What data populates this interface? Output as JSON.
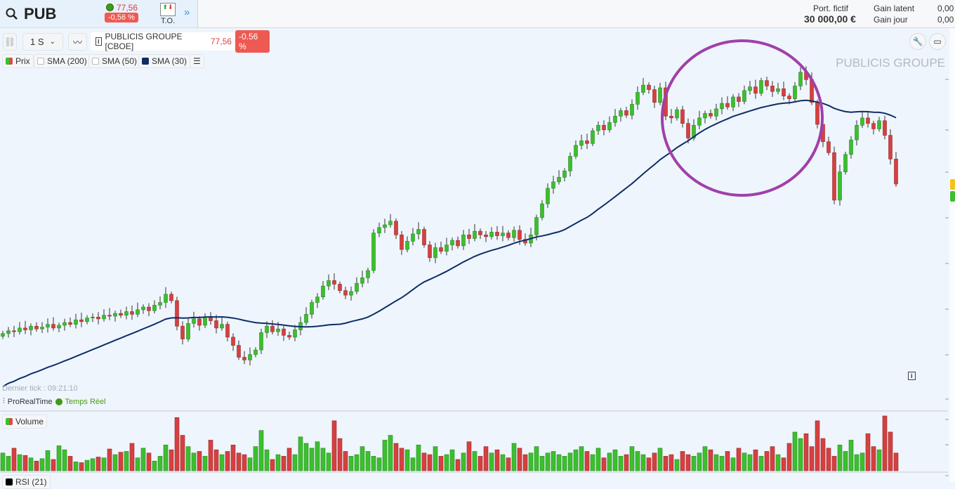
{
  "header": {
    "symbol": "PUB",
    "last_price": "77,56",
    "change": "-0,56 %",
    "to_label": "T.O.",
    "more_icon": "double-chevron-right-icon",
    "portfolio_label": "Port. fictif",
    "portfolio_value": "30 000,00 €",
    "gain_latent_label": "Gain latent",
    "gain_latent_value": "0,00",
    "gain_jour_label": "Gain jour",
    "gain_jour_value": "0,00"
  },
  "toolbar": {
    "period": "1 S",
    "instrument": "PUBLICIS GROUPE [CBOE]",
    "price": "77,56",
    "change": "-0.56 %"
  },
  "legend": [
    {
      "label": "Prix",
      "color": "#e04848"
    },
    {
      "label": "SMA (200)",
      "checked": false
    },
    {
      "label": "SMA (50)",
      "checked": false
    },
    {
      "label": "SMA (30)",
      "color": "#0f2d66"
    }
  ],
  "watermark": "PUBLICIS GROUPE",
  "last_tick": "Dernier tick : 09:21:10",
  "source": "ProRealTime",
  "realtime": "Temps Réel",
  "volume_label": "Volume",
  "rsi_label": "RSI (21)",
  "colors": {
    "up": "#3cbf2e",
    "down": "#d64040",
    "sma": "#0f2d66",
    "annotation": "#a040a8",
    "badge_last": "#f0c419",
    "badge_green": "#3cbf2e"
  },
  "chart_data": {
    "type": "candlestick",
    "last_close": 77.56,
    "closes": [
      61.2,
      61.5,
      61.4,
      61.8,
      61.6,
      62.0,
      61.7,
      61.9,
      62.2,
      61.8,
      62.1,
      62.4,
      62.2,
      62.7,
      62.5,
      62.9,
      63.0,
      62.8,
      63.2,
      63.1,
      63.4,
      63.2,
      63.6,
      63.3,
      63.8,
      64.1,
      63.7,
      64.3,
      64.6,
      65.5,
      64.8,
      62.0,
      60.6,
      62.3,
      62.8,
      62.1,
      63.0,
      62.6,
      61.8,
      62.2,
      60.8,
      59.9,
      58.6,
      58.3,
      58.9,
      59.4,
      61.3,
      62.0,
      61.4,
      61.7,
      61.0,
      60.8,
      61.6,
      62.4,
      63.3,
      64.6,
      65.2,
      66.4,
      67.0,
      66.6,
      65.9,
      65.4,
      65.8,
      66.7,
      67.3,
      68.1,
      72.2,
      72.8,
      73.1,
      73.5,
      72.0,
      70.4,
      71.3,
      72.1,
      72.6,
      70.9,
      69.5,
      70.6,
      70.2,
      70.9,
      71.4,
      70.8,
      72.0,
      71.6,
      72.4,
      72.0,
      71.8,
      72.3,
      71.9,
      72.2,
      71.7,
      72.5,
      71.5,
      71.1,
      72.0,
      73.9,
      75.4,
      77.1,
      77.8,
      78.3,
      79.0,
      80.6,
      81.8,
      82.3,
      82.0,
      83.4,
      84.0,
      83.5,
      84.3,
      85.0,
      85.6,
      85.1,
      86.3,
      87.6,
      88.4,
      87.9,
      86.5,
      88.1,
      85.0,
      84.8,
      85.7,
      84.2,
      82.6,
      84.0,
      84.8,
      85.3,
      85.0,
      85.8,
      86.4,
      86.0,
      87.1,
      86.6,
      87.8,
      88.2,
      87.5,
      88.9,
      88.3,
      87.7,
      88.0,
      87.2,
      86.9,
      88.3,
      89.8,
      89.0,
      86.5,
      84.1,
      82.2,
      81.0,
      75.8,
      78.9,
      80.8,
      82.4,
      84.0,
      84.8,
      84.2,
      83.6,
      84.5,
      82.9,
      80.3,
      77.56
    ],
    "volumes": [
      22,
      18,
      28,
      20,
      19,
      16,
      12,
      15,
      25,
      14,
      31,
      26,
      18,
      11,
      10,
      13,
      15,
      17,
      16,
      27,
      20,
      23,
      24,
      34,
      16,
      28,
      22,
      12,
      18,
      32,
      26,
      66,
      44,
      30,
      22,
      24,
      18,
      38,
      26,
      20,
      24,
      32,
      22,
      20,
      16,
      30,
      50,
      26,
      14,
      20,
      18,
      28,
      20,
      42,
      34,
      28,
      36,
      28,
      22,
      62,
      40,
      24,
      18,
      20,
      30,
      24,
      18,
      16,
      38,
      44,
      34,
      28,
      26,
      16,
      32,
      22,
      20,
      30,
      18,
      20,
      26,
      14,
      22,
      36,
      24,
      18,
      30,
      22,
      26,
      20,
      16,
      34,
      28,
      20,
      22,
      30,
      18,
      22,
      24,
      20,
      18,
      22,
      26,
      30,
      24,
      20,
      28,
      16,
      22,
      26,
      18,
      20,
      30,
      24,
      20,
      16,
      22,
      28,
      18,
      20,
      14,
      24,
      20,
      18,
      22,
      30,
      26,
      20,
      18,
      24,
      16,
      28,
      22,
      20,
      26,
      18,
      24,
      30,
      20,
      16,
      34,
      48,
      40,
      46,
      30,
      62,
      40,
      28,
      18,
      32,
      24,
      38,
      20,
      22,
      46,
      30,
      26,
      68,
      48,
      22
    ],
    "sma_period": 30,
    "annotation": "circle around recent top"
  }
}
